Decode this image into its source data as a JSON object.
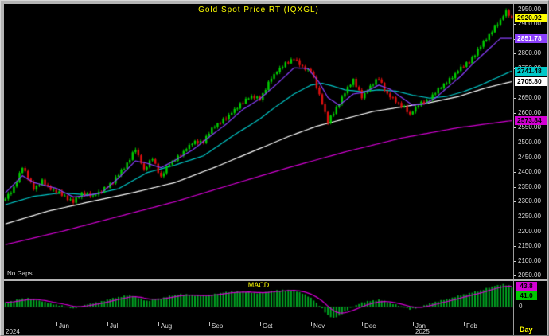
{
  "window": {
    "frame_color": "#b4b4b4",
    "panel_bg": "#000000"
  },
  "chart_data": [
    {
      "type": "candlestick",
      "title": "Gold Spot Price,RT (IQXGL)",
      "symbol": "IQXGL",
      "interval": "Day",
      "corner_label": "No Gaps",
      "ylim": [
        2040,
        2968
      ],
      "y_ticks": [
        2950,
        2900,
        2850,
        2800,
        2750,
        2700,
        2650,
        2600,
        2550,
        2500,
        2450,
        2400,
        2350,
        2300,
        2250,
        2200,
        2150,
        2100,
        2050
      ],
      "candle_count": 180,
      "up_color": "#00d000",
      "down_color": "#e01010",
      "close_anchors": [
        [
          0,
          2310
        ],
        [
          3,
          2345
        ],
        [
          6,
          2420
        ],
        [
          8,
          2380
        ],
        [
          10,
          2345
        ],
        [
          13,
          2370
        ],
        [
          16,
          2340
        ],
        [
          20,
          2325
        ],
        [
          24,
          2298
        ],
        [
          27,
          2330
        ],
        [
          31,
          2318
        ],
        [
          34,
          2335
        ],
        [
          38,
          2368
        ],
        [
          42,
          2415
        ],
        [
          46,
          2478
        ],
        [
          49,
          2405
        ],
        [
          52,
          2448
        ],
        [
          55,
          2382
        ],
        [
          58,
          2430
        ],
        [
          62,
          2458
        ],
        [
          66,
          2498
        ],
        [
          70,
          2505
        ],
        [
          74,
          2558
        ],
        [
          78,
          2582
        ],
        [
          82,
          2618
        ],
        [
          86,
          2655
        ],
        [
          90,
          2648
        ],
        [
          94,
          2718
        ],
        [
          98,
          2758
        ],
        [
          102,
          2786
        ],
        [
          105,
          2752
        ],
        [
          108,
          2744
        ],
        [
          111,
          2660
        ],
        [
          114,
          2568
        ],
        [
          117,
          2618
        ],
        [
          120,
          2668
        ],
        [
          123,
          2714
        ],
        [
          126,
          2652
        ],
        [
          129,
          2688
        ],
        [
          132,
          2718
        ],
        [
          135,
          2662
        ],
        [
          138,
          2640
        ],
        [
          141,
          2618
        ],
        [
          143,
          2592
        ],
        [
          146,
          2628
        ],
        [
          149,
          2640
        ],
        [
          152,
          2668
        ],
        [
          155,
          2698
        ],
        [
          158,
          2720
        ],
        [
          161,
          2752
        ],
        [
          164,
          2772
        ],
        [
          166,
          2800
        ],
        [
          169,
          2838
        ],
        [
          172,
          2878
        ],
        [
          175,
          2912
        ],
        [
          177,
          2942
        ],
        [
          179,
          2920.92
        ]
      ],
      "moving_averages": [
        {
          "name": "ma-200",
          "color": "#d400d4",
          "over_candles": false,
          "last_value": 2573.84,
          "anchors": [
            [
              0,
              2155
            ],
            [
              20,
              2200
            ],
            [
              40,
              2250
            ],
            [
              60,
              2300
            ],
            [
              80,
              2358
            ],
            [
              100,
              2415
            ],
            [
              120,
              2468
            ],
            [
              140,
              2515
            ],
            [
              160,
              2550
            ],
            [
              179,
              2573.84
            ]
          ]
        },
        {
          "name": "ma-100",
          "color": "#ffffff",
          "over_candles": false,
          "last_value": 2705.8,
          "anchors": [
            [
              0,
              2225
            ],
            [
              15,
              2268
            ],
            [
              30,
              2300
            ],
            [
              45,
              2330
            ],
            [
              60,
              2365
            ],
            [
              75,
              2420
            ],
            [
              90,
              2480
            ],
            [
              100,
              2520
            ],
            [
              110,
              2555
            ],
            [
              120,
              2580
            ],
            [
              130,
              2605
            ],
            [
              140,
              2620
            ],
            [
              150,
              2635
            ],
            [
              160,
              2655
            ],
            [
              170,
              2685
            ],
            [
              179,
              2705.8
            ]
          ]
        },
        {
          "name": "ma-50",
          "color": "#00c8c8",
          "over_candles": false,
          "last_value": 2741.48,
          "anchors": [
            [
              0,
              2290
            ],
            [
              10,
              2318
            ],
            [
              20,
              2330
            ],
            [
              30,
              2322
            ],
            [
              40,
              2344
            ],
            [
              50,
              2398
            ],
            [
              60,
              2424
            ],
            [
              70,
              2455
            ],
            [
              80,
              2520
            ],
            [
              90,
              2580
            ],
            [
              96,
              2624
            ],
            [
              102,
              2664
            ],
            [
              108,
              2694
            ],
            [
              112,
              2700
            ],
            [
              116,
              2690
            ],
            [
              120,
              2678
            ],
            [
              126,
              2672
            ],
            [
              132,
              2678
            ],
            [
              138,
              2674
            ],
            [
              144,
              2660
            ],
            [
              150,
              2650
            ],
            [
              156,
              2656
            ],
            [
              162,
              2672
            ],
            [
              168,
              2694
            ],
            [
              174,
              2720
            ],
            [
              179,
              2741.48
            ]
          ]
        },
        {
          "name": "ema-fast",
          "color": "#8a3ffc",
          "over_candles": true,
          "last_value": 2851.78,
          "anchors": [
            [
              0,
              2330
            ],
            [
              6,
              2388
            ],
            [
              10,
              2365
            ],
            [
              14,
              2355
            ],
            [
              18,
              2345
            ],
            [
              24,
              2316
            ],
            [
              28,
              2320
            ],
            [
              34,
              2330
            ],
            [
              40,
              2380
            ],
            [
              46,
              2438
            ],
            [
              50,
              2430
            ],
            [
              55,
              2415
            ],
            [
              60,
              2440
            ],
            [
              66,
              2474
            ],
            [
              72,
              2518
            ],
            [
              78,
              2562
            ],
            [
              84,
              2612
            ],
            [
              90,
              2648
            ],
            [
              96,
              2698
            ],
            [
              102,
              2752
            ],
            [
              107,
              2750
            ],
            [
              111,
              2702
            ],
            [
              114,
              2652
            ],
            [
              118,
              2626
            ],
            [
              123,
              2664
            ],
            [
              127,
              2670
            ],
            [
              132,
              2694
            ],
            [
              136,
              2680
            ],
            [
              141,
              2646
            ],
            [
              144,
              2626
            ],
            [
              148,
              2630
            ],
            [
              152,
              2650
            ],
            [
              156,
              2684
            ],
            [
              161,
              2724
            ],
            [
              165,
              2764
            ],
            [
              170,
              2808
            ],
            [
              175,
              2852
            ],
            [
              179,
              2851.78
            ]
          ]
        }
      ],
      "callouts": [
        {
          "name": "last-price",
          "value": 2920.92,
          "label": "2920.92",
          "bg": "#ffff00",
          "fg": "#000000"
        },
        {
          "name": "ema-fast",
          "value": 2851.78,
          "label": "2851.78",
          "bg": "#8a3ffc",
          "fg": "#ffffff"
        },
        {
          "name": "ma-50",
          "value": 2741.48,
          "label": "2741.48",
          "bg": "#00c8c8",
          "fg": "#000000"
        },
        {
          "name": "ma-100",
          "value": 2705.8,
          "label": "2705.80",
          "bg": "#ffffff",
          "fg": "#000000"
        },
        {
          "name": "ma-200",
          "value": 2573.84,
          "label": "2573.84",
          "bg": "#d400d4",
          "fg": "#000000"
        }
      ]
    },
    {
      "type": "bar",
      "title": "MACD",
      "zero_label": "0",
      "bar_color": "#00a822",
      "signal_color": "#d400d4",
      "signal_label": "43.8",
      "value_label": "41.0",
      "signal_bg": "#d400d4",
      "value_bg": "#00c800",
      "histogram_anchors": [
        [
          0,
          8
        ],
        [
          4,
          14
        ],
        [
          8,
          18
        ],
        [
          12,
          12
        ],
        [
          16,
          6
        ],
        [
          20,
          2
        ],
        [
          24,
          -4
        ],
        [
          28,
          3
        ],
        [
          32,
          8
        ],
        [
          36,
          14
        ],
        [
          40,
          20
        ],
        [
          44,
          24
        ],
        [
          47,
          18
        ],
        [
          50,
          12
        ],
        [
          54,
          16
        ],
        [
          58,
          22
        ],
        [
          62,
          26
        ],
        [
          66,
          24
        ],
        [
          70,
          22
        ],
        [
          74,
          26
        ],
        [
          78,
          30
        ],
        [
          82,
          32
        ],
        [
          86,
          30
        ],
        [
          90,
          28
        ],
        [
          94,
          32
        ],
        [
          98,
          35
        ],
        [
          102,
          34
        ],
        [
          105,
          28
        ],
        [
          108,
          18
        ],
        [
          111,
          2
        ],
        [
          114,
          -18
        ],
        [
          116,
          -24
        ],
        [
          118,
          -20
        ],
        [
          120,
          -10
        ],
        [
          123,
          0
        ],
        [
          126,
          8
        ],
        [
          129,
          12
        ],
        [
          132,
          14
        ],
        [
          135,
          10
        ],
        [
          138,
          4
        ],
        [
          141,
          -2
        ],
        [
          143,
          -6
        ],
        [
          146,
          -2
        ],
        [
          149,
          4
        ],
        [
          152,
          10
        ],
        [
          155,
          14
        ],
        [
          158,
          18
        ],
        [
          161,
          24
        ],
        [
          164,
          28
        ],
        [
          167,
          32
        ],
        [
          170,
          38
        ],
        [
          173,
          43
        ],
        [
          176,
          46
        ],
        [
          178,
          44
        ],
        [
          179,
          41
        ]
      ]
    }
  ],
  "time_axis": {
    "interval": "Day",
    "interval_color": "#ffff00",
    "months": [
      {
        "label": "Jun",
        "i": 18
      },
      {
        "label": "Jul",
        "i": 36
      },
      {
        "label": "Aug",
        "i": 54
      },
      {
        "label": "Sep",
        "i": 72
      },
      {
        "label": "Oct",
        "i": 90
      },
      {
        "label": "Nov",
        "i": 108
      },
      {
        "label": "Dec",
        "i": 126
      },
      {
        "label": "Jan",
        "i": 144
      },
      {
        "label": "Feb",
        "i": 162
      }
    ],
    "years": [
      {
        "label": "2024",
        "i": 0
      },
      {
        "label": "2025",
        "i": 144
      }
    ]
  }
}
